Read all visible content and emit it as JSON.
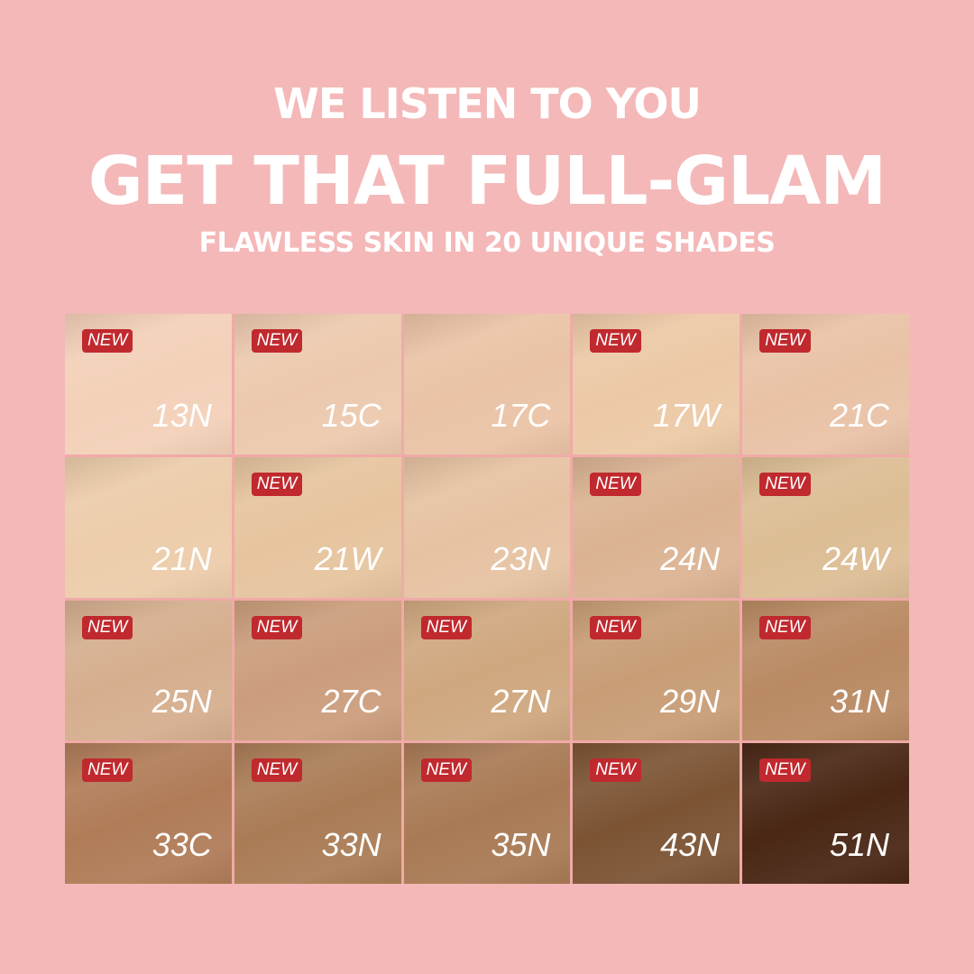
{
  "header": {
    "line1": "WE LISTEN TO YOU",
    "line2": "GET THAT FULL-GLAM",
    "line3": "FLAWLESS SKIN IN 20 UNIQUE SHADES"
  },
  "badge_label": "NEW",
  "colors": {
    "background": "#f4b8b8",
    "badge": "#c0292e"
  },
  "shades": [
    {
      "name": "13N",
      "new": true,
      "color": "#f3d0b8"
    },
    {
      "name": "15C",
      "new": true,
      "color": "#ecc9ae"
    },
    {
      "name": "17C",
      "new": false,
      "color": "#eac3a6"
    },
    {
      "name": "17W",
      "new": true,
      "color": "#ecc9a6"
    },
    {
      "name": "21C",
      "new": true,
      "color": "#e9c2a6"
    },
    {
      "name": "21N",
      "new": false,
      "color": "#ecccaa"
    },
    {
      "name": "21W",
      "new": true,
      "color": "#e6c49e"
    },
    {
      "name": "23N",
      "new": false,
      "color": "#e6c2a2"
    },
    {
      "name": "24N",
      "new": true,
      "color": "#dbb392"
    },
    {
      "name": "24W",
      "new": true,
      "color": "#dcbd94"
    },
    {
      "name": "25N",
      "new": true,
      "color": "#d5ae8e"
    },
    {
      "name": "27C",
      "new": true,
      "color": "#cb9d7c"
    },
    {
      "name": "27N",
      "new": true,
      "color": "#cfa77f"
    },
    {
      "name": "29N",
      "new": true,
      "color": "#c89d76"
    },
    {
      "name": "31N",
      "new": true,
      "color": "#b98a63"
    },
    {
      "name": "33C",
      "new": true,
      "color": "#b07c58"
    },
    {
      "name": "33N",
      "new": true,
      "color": "#aa7c56"
    },
    {
      "name": "35N",
      "new": true,
      "color": "#a97a55"
    },
    {
      "name": "43N",
      "new": true,
      "color": "#7c5434"
    },
    {
      "name": "51N",
      "new": true,
      "color": "#4a2715"
    }
  ]
}
